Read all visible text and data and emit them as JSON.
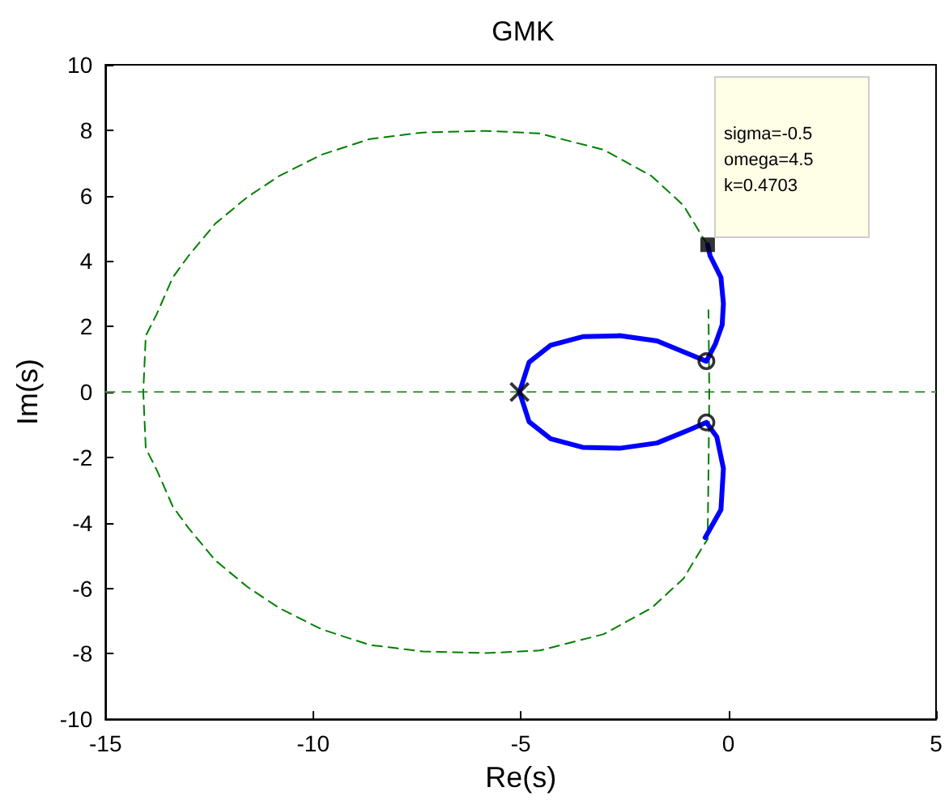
{
  "chart_data": {
    "type": "line",
    "title": "GMK",
    "xlabel": "Re(s)",
    "ylabel": "Im(s)",
    "xlim": [
      -15,
      5
    ],
    "xticks": [
      -15,
      -10,
      -5,
      0,
      5
    ],
    "ylim": [
      -10,
      10
    ],
    "yticks": [
      -10,
      -8,
      -6,
      -4,
      -2,
      0,
      2,
      4,
      6,
      8,
      10
    ],
    "grid": false,
    "series": [
      {
        "type": "line",
        "color": "#008000",
        "line_style": "dashed",
        "marker": "none",
        "x": [
          -0.5,
          -0.62,
          -1.08,
          -1.85,
          -3.0,
          -4.54,
          -5.82,
          -7.36,
          -8.64,
          -9.8,
          -10.82,
          -11.59,
          -12.36,
          -13.0,
          -13.38,
          -13.77,
          -14.03,
          -14.09,
          -14.03,
          -13.77,
          -13.38,
          -13.0,
          -12.36,
          -11.59,
          -10.82,
          -9.8,
          -8.64,
          -7.36,
          -5.82,
          -4.54,
          -3.0,
          -1.85,
          -1.08,
          -0.62,
          -0.5,
          -0.48,
          -0.46,
          -0.48
        ],
        "values": [
          4.5,
          4.73,
          5.7,
          6.6,
          7.4,
          7.9,
          7.98,
          7.93,
          7.73,
          7.25,
          6.6,
          5.95,
          5.14,
          4.16,
          3.5,
          2.37,
          1.72,
          0,
          -1.72,
          -2.37,
          -3.5,
          -4.16,
          -5.14,
          -5.95,
          -6.6,
          -7.25,
          -7.73,
          -7.93,
          -7.98,
          -7.9,
          -7.4,
          -6.6,
          -5.7,
          -4.73,
          -4.5,
          -2.5,
          0,
          2.5
        ]
      },
      {
        "type": "line",
        "color": "#0000ff",
        "line_style": "solid",
        "marker": "none",
        "x": [
          -0.5,
          -0.44,
          -0.18,
          -0.12,
          -0.15,
          -0.31,
          -0.53,
          -0.95,
          -1.72,
          -2.62,
          -3.51,
          -4.28,
          -4.8,
          -5.03
        ],
        "values": [
          4.5,
          4.16,
          3.5,
          2.7,
          2.05,
          1.48,
          0.94,
          1.16,
          1.56,
          1.72,
          1.69,
          1.43,
          0.91,
          0
        ]
      },
      {
        "type": "line",
        "color": "#0000ff",
        "line_style": "solid",
        "marker": "none",
        "x": [
          -5.03,
          -4.8,
          -4.28,
          -3.51,
          -2.62,
          -1.72,
          -0.95,
          -0.53,
          -0.28,
          -0.12,
          -0.18,
          -0.56
        ],
        "values": [
          0,
          -0.91,
          -1.43,
          -1.69,
          -1.72,
          -1.56,
          -1.16,
          -0.93,
          -1.37,
          -2.34,
          -3.6,
          -4.45
        ]
      },
      {
        "type": "scatter",
        "color": "#000000",
        "marker": "cross",
        "x": [
          -5.03
        ],
        "values": [
          0
        ]
      },
      {
        "type": "scatter",
        "color": "#000000",
        "marker": "circle",
        "x": [
          -0.53,
          -0.53
        ],
        "values": [
          0.94,
          -0.93
        ]
      },
      {
        "type": "scatter",
        "color": "#000000",
        "marker": "square",
        "x": [
          -0.5
        ],
        "values": [
          4.5
        ]
      }
    ],
    "ref_lines": [
      {
        "axis": "y",
        "value": 0,
        "color": "#44a044",
        "line_style": "dashed"
      }
    ],
    "annotations": [
      {
        "text": "sigma=-0.5\nomega=4.5\nk=0.4703",
        "x": -0.5,
        "y": 4.5
      }
    ]
  }
}
